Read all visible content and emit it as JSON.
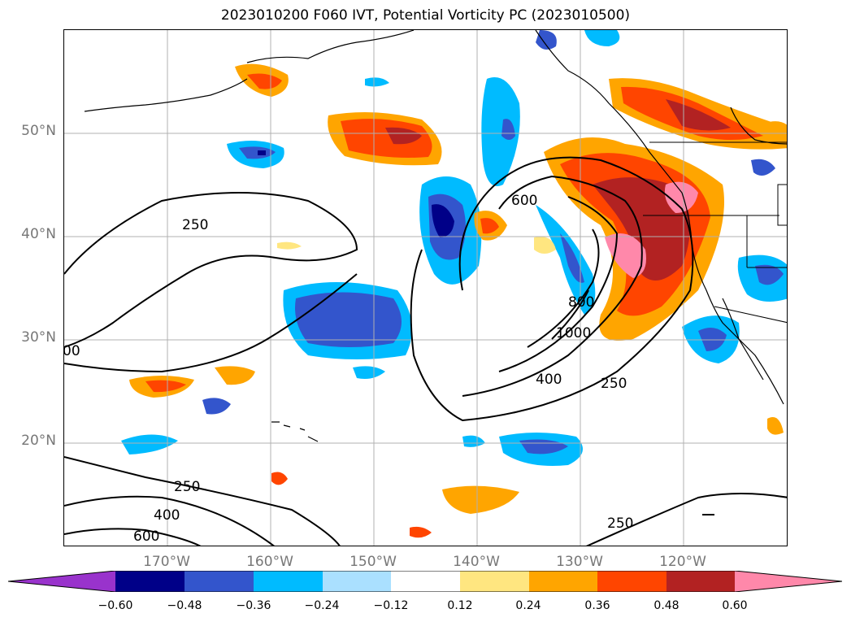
{
  "title": "2023010200 F060 IVT, Potential Vorticity PC (2023010500)",
  "lat_labels": [
    "50°N",
    "40°N",
    "30°N",
    "20°N"
  ],
  "lon_labels": [
    "170°W",
    "160°W",
    "150°W",
    "140°W",
    "130°W",
    "120°W"
  ],
  "contour_labels": {
    "c250_a": "250",
    "c250_b": "250",
    "c250_c": "250",
    "c250_d": "250",
    "c400_a": "400",
    "c400_b": "400",
    "c600_a": "600",
    "c600_b": "600",
    "c800": "800",
    "c1000": "1000",
    "c_edge": "00"
  },
  "colorbar": {
    "ticks": [
      "−0.60",
      "−0.48",
      "−0.36",
      "−0.24",
      "−0.12",
      "0.12",
      "0.24",
      "0.36",
      "0.48",
      "0.60"
    ],
    "colors": [
      "#9933cc",
      "#000088",
      "#3355cc",
      "#00bbff",
      "#aae0ff",
      "#ffffff",
      "#ffe680",
      "#ffa500",
      "#ff4500",
      "#b22222",
      "#ff88aa"
    ]
  },
  "colors": {
    "grid": "#b0b0b0",
    "coast": "#000000",
    "label": "#777777"
  }
}
